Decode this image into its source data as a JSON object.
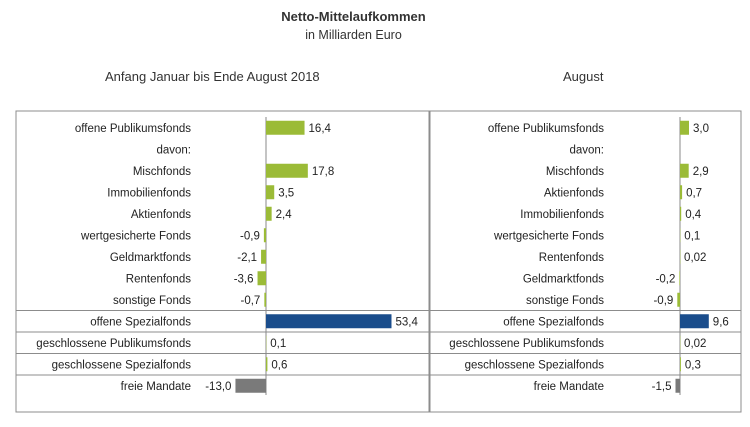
{
  "header": {
    "title": "Netto-Mittelaufkommen",
    "subtitle": "in Milliarden Euro"
  },
  "chart_data": [
    {
      "type": "bar",
      "title": "Anfang Januar bis Ende August 2018",
      "orientation": "horizontal",
      "categories": [
        "offene Publikumsfonds",
        "davon:",
        "Mischfonds",
        "Immobilienfonds",
        "Aktienfonds",
        "wertgesicherte Fonds",
        "Geldmarktfonds",
        "Rentenfonds",
        "sonstige Fonds",
        "offene Spezialfonds",
        "geschlossene Publikumsfonds",
        "geschlossene Spezialfonds",
        "freie Mandate"
      ],
      "values": [
        16.4,
        null,
        17.8,
        3.5,
        2.4,
        -0.9,
        -2.1,
        -3.6,
        -0.7,
        53.4,
        0.1,
        0.6,
        -13.0
      ],
      "value_labels": [
        "16,4",
        "",
        "17,8",
        "3,5",
        "2,4",
        "-0,9",
        "-2,1",
        "-3,6",
        "-0,7",
        "53,4",
        "0,1",
        "0,6",
        "-13,0"
      ],
      "bar_colors": [
        "#9bbb37",
        null,
        "#9bbb37",
        "#9bbb37",
        "#9bbb37",
        "#9bbb37",
        "#9bbb37",
        "#9bbb37",
        "#9bbb37",
        "#1a4d8c",
        "#9bbb37",
        "#9bbb37",
        "#7a7a7a"
      ]
    },
    {
      "type": "bar",
      "title": "August",
      "orientation": "horizontal",
      "categories": [
        "offene Publikumsfonds",
        "davon:",
        "Mischfonds",
        "Aktienfonds",
        "Immobilienfonds",
        "wertgesicherte Fonds",
        "Rentenfonds",
        "Geldmarktfonds",
        "sonstige Fonds",
        "offene Spezialfonds",
        "geschlossene Publikumsfonds",
        "geschlossene Spezialfonds",
        "freie Mandate"
      ],
      "values": [
        3.0,
        null,
        2.9,
        0.7,
        0.4,
        0.1,
        0.02,
        -0.2,
        -0.9,
        9.6,
        0.02,
        0.3,
        -1.5
      ],
      "value_labels": [
        "3,0",
        "",
        "2,9",
        "0,7",
        "0,4",
        "0,1",
        "0,02",
        "-0,2",
        "-0,9",
        "9,6",
        "0,02",
        "0,3",
        "-1,5"
      ],
      "bar_colors": [
        "#9bbb37",
        null,
        "#9bbb37",
        "#9bbb37",
        "#9bbb37",
        "#9bbb37",
        "#9bbb37",
        "#9bbb37",
        "#9bbb37",
        "#1a4d8c",
        "#9bbb37",
        "#9bbb37",
        "#7a7a7a"
      ]
    }
  ]
}
